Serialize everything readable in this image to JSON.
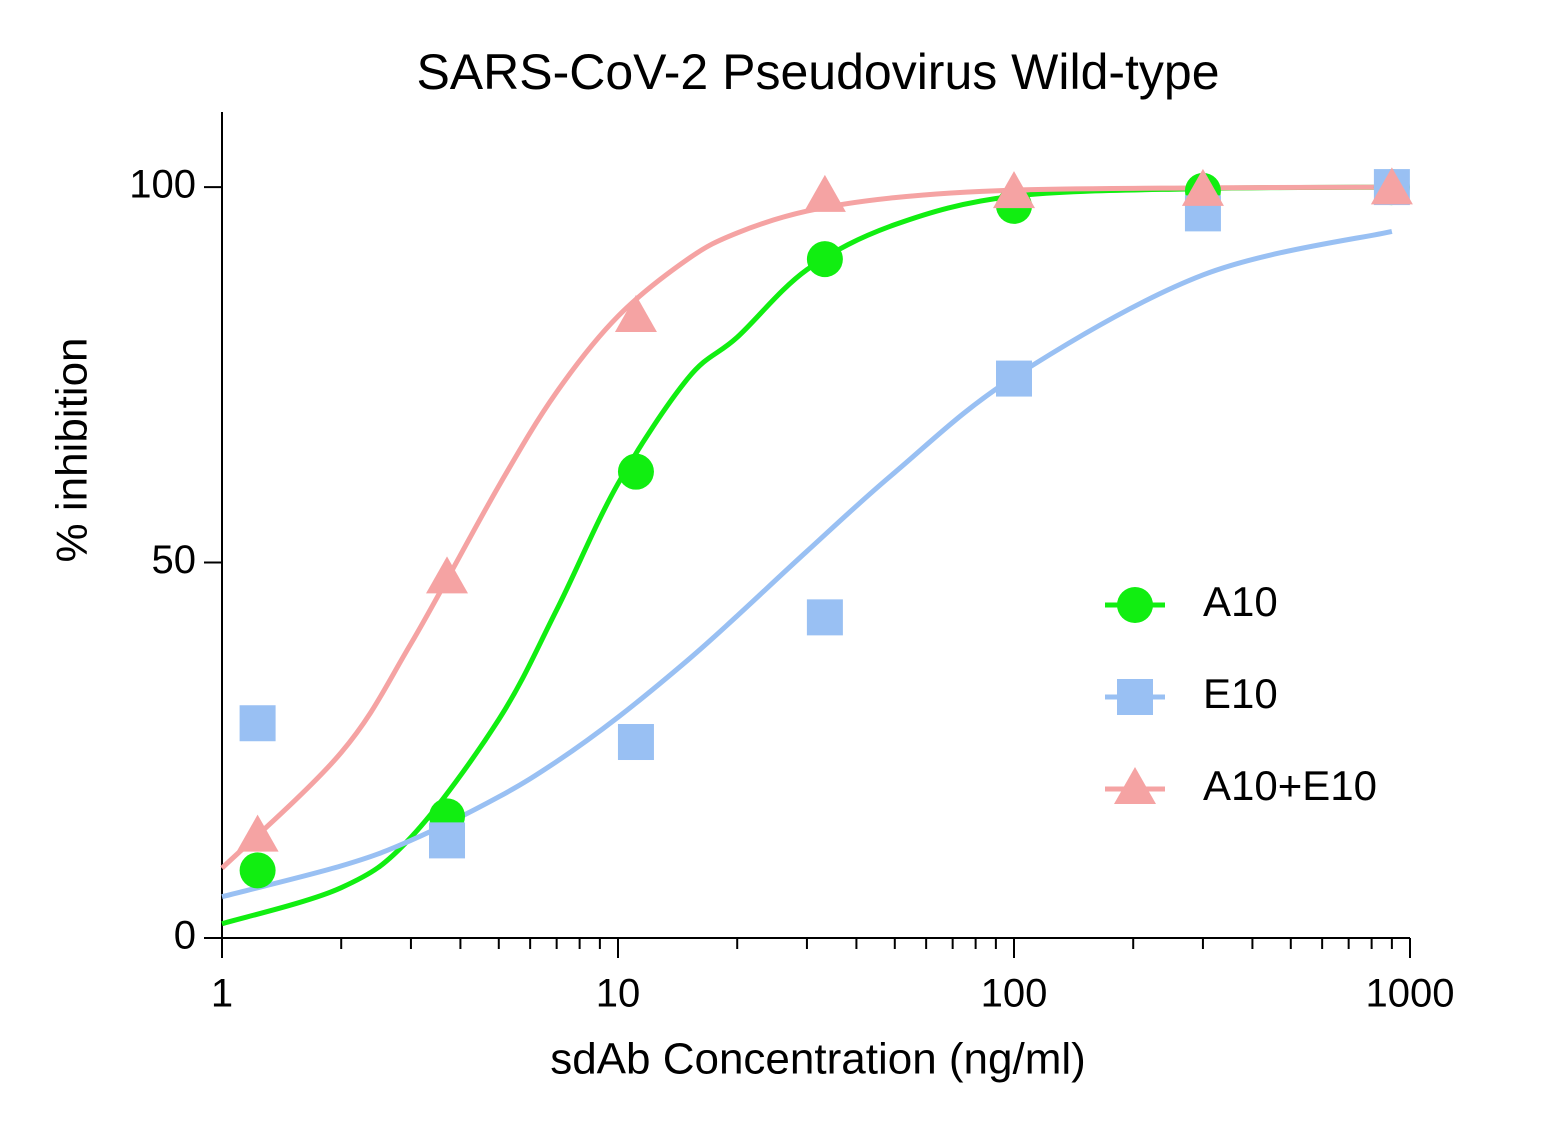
{
  "chart_data": {
    "type": "scatter",
    "title": "SARS-CoV-2 Pseudovirus Wild-type",
    "x_label": "sdAb Concentration (ng/ml)",
    "y_label": "% inhibition",
    "x_log": true,
    "xlim": [
      1,
      1000
    ],
    "xticks": [
      1,
      10,
      100,
      1000
    ],
    "x_minor_ticks": [
      2,
      3,
      4,
      5,
      6,
      7,
      8,
      9,
      20,
      30,
      40,
      50,
      60,
      70,
      80,
      90,
      200,
      300,
      400,
      500,
      600,
      700,
      800,
      900
    ],
    "ylim": [
      0,
      110
    ],
    "yticks": [
      0,
      50,
      100
    ],
    "legend": "right",
    "series": [
      {
        "name": "A10",
        "color": "#11ee11",
        "marker": "circle",
        "x": [
          1.23,
          3.7,
          11.1,
          33.3,
          100,
          300,
          900
        ],
        "values": [
          9.0,
          16.2,
          62.1,
          90.4,
          97.5,
          99.5,
          100
        ],
        "curve": {
          "x": [
            1,
            2,
            3,
            5,
            7,
            10,
            15,
            20,
            30,
            50,
            100,
            300,
            900
          ],
          "values": [
            1.9,
            6.7,
            13.4,
            29.1,
            43.7,
            60.5,
            74.5,
            80,
            89,
            95,
            98.8,
            99.8,
            100
          ]
        }
      },
      {
        "name": "E10",
        "color": "#99c0f3",
        "marker": "square",
        "x": [
          1.23,
          3.7,
          11.1,
          33.3,
          100,
          300,
          900
        ],
        "values": [
          28.6,
          13.0,
          26.1,
          42.7,
          74.5,
          96.5,
          100
        ],
        "curve": {
          "x": [
            1,
            2,
            3,
            5,
            7,
            10,
            15,
            20,
            30,
            50,
            100,
            300,
            900
          ],
          "values": [
            5.5,
            9.6,
            13,
            18.8,
            23.5,
            29.4,
            37,
            42.9,
            51.5,
            62,
            74.7,
            88.3,
            94.1
          ]
        }
      },
      {
        "name": "A10+E10",
        "color": "#f5a3a3",
        "marker": "triangle",
        "x": [
          1.23,
          3.7,
          11.1,
          33.3,
          100,
          300,
          900
        ],
        "values": [
          13.5,
          47.9,
          82.7,
          98.7,
          99.2,
          99.5,
          99.7
        ],
        "curve": {
          "x": [
            1,
            2,
            3,
            5,
            7,
            10,
            15,
            20,
            30,
            50,
            100,
            300,
            900
          ],
          "values": [
            9.3,
            24.7,
            39.2,
            60.2,
            72.7,
            82.8,
            90.4,
            93.9,
            96.8,
            98.6,
            99.6,
            99.9,
            100
          ]
        }
      }
    ]
  }
}
